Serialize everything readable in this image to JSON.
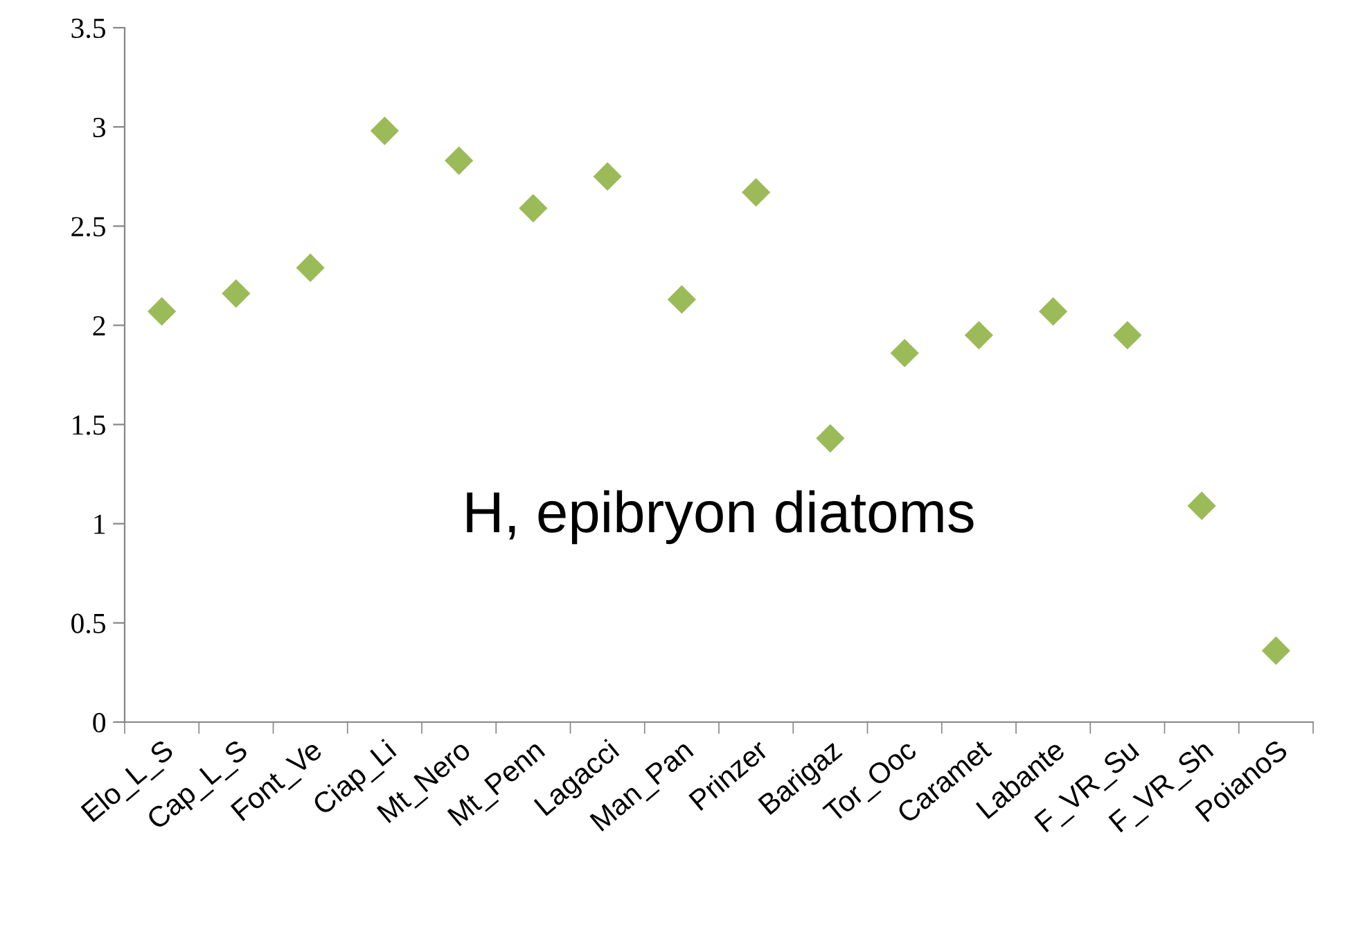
{
  "chart_data": {
    "type": "scatter",
    "categories": [
      "Elo_L_S",
      "Cap_L_S",
      "Font_Ve",
      "Ciap_Li",
      "Mt_Nero",
      "Mt_Penn",
      "Lagacci",
      "Man_Pan",
      "Prinzer",
      "Barigaz",
      "Tor_Ooc",
      "Caramet",
      "Labante",
      "F_VR_Su",
      "F_VR_Sh",
      "PoianoS"
    ],
    "series": [
      {
        "color": "#9bbb59",
        "values": [
          2.07,
          2.16,
          2.29,
          2.98,
          2.83,
          2.59,
          2.75,
          2.13,
          2.67,
          1.43,
          1.86,
          1.95,
          2.07,
          1.95,
          1.09,
          0.36
        ]
      }
    ],
    "marker": "diamond",
    "ylim": [
      0,
      3.5
    ],
    "yticks": [
      0,
      0.5,
      1,
      1.5,
      2,
      2.5,
      3,
      3.5
    ],
    "annotations": [
      "H, epibryon diatoms"
    ],
    "grid": false,
    "legend": false
  }
}
